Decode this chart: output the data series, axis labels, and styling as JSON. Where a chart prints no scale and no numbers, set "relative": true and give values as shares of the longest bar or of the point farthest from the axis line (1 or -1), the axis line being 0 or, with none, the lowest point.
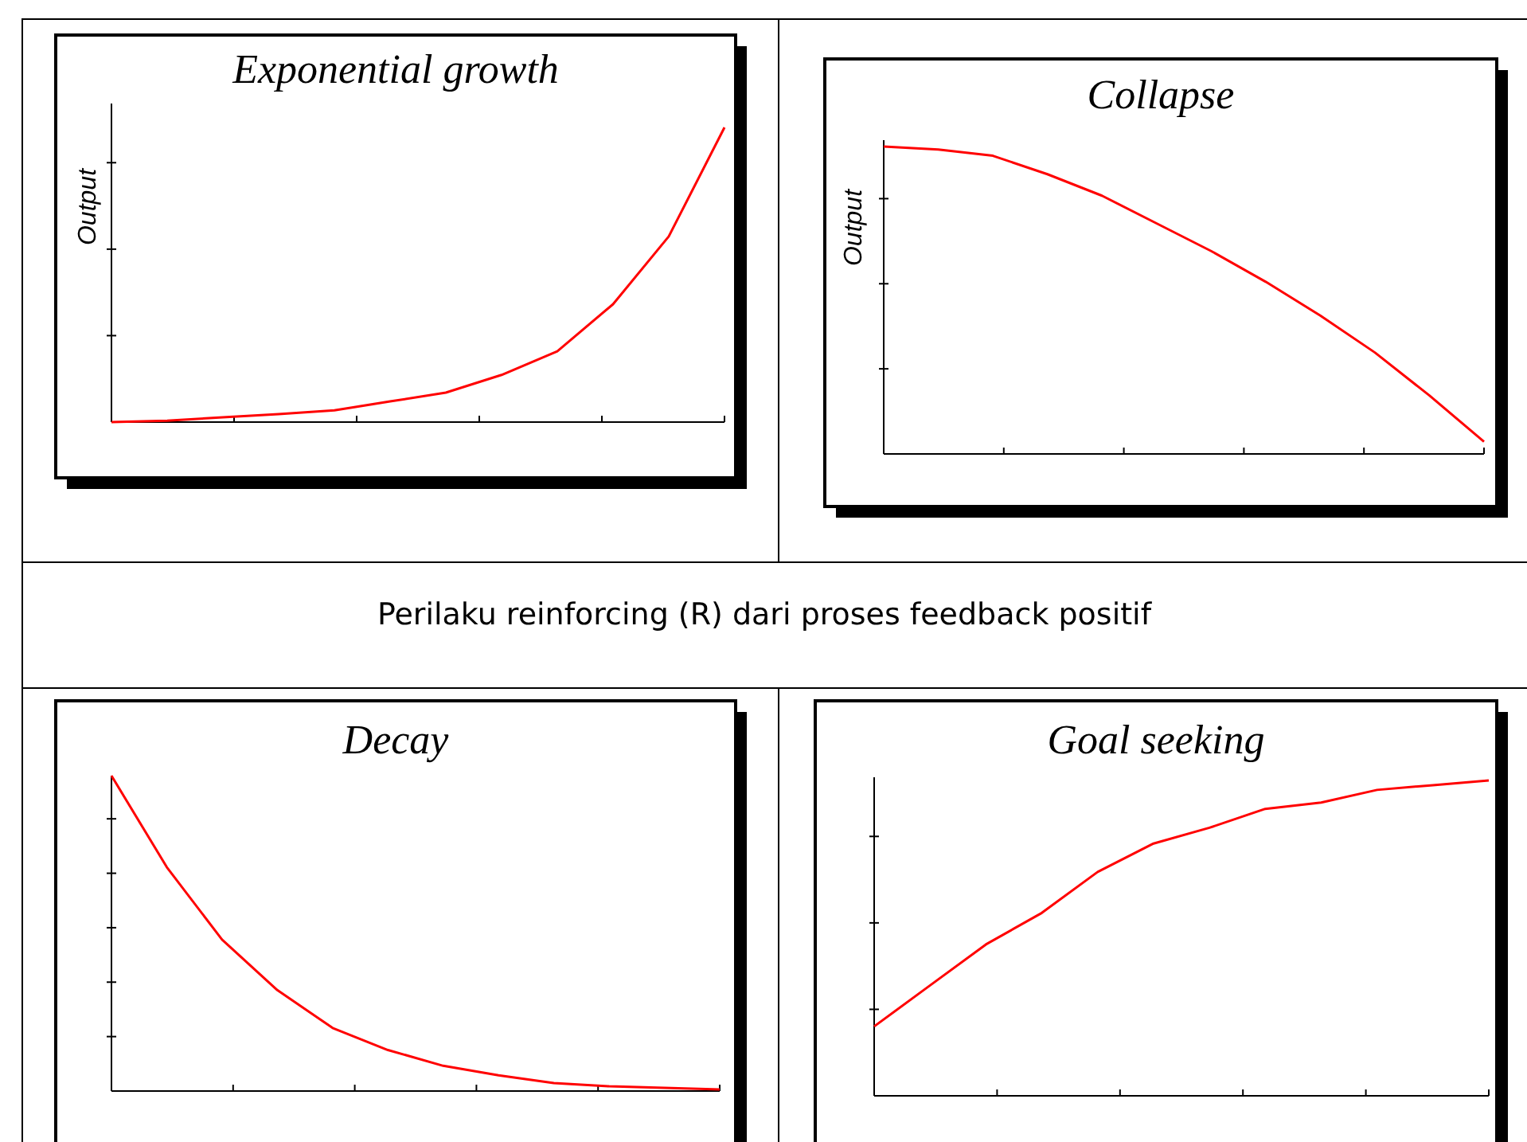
{
  "chart_data": [
    {
      "type": "line",
      "title": "Exponential growth",
      "ylabel": "Output",
      "relative": true,
      "categories": [
        null,
        null,
        null,
        null,
        null,
        null,
        null,
        null,
        null,
        null,
        null,
        null
      ],
      "series": [
        {
          "color": "#ff0000",
          "values": [
            0,
            0.005,
            0.016,
            0.027,
            0.04,
            0.07,
            0.1,
            0.16,
            0.24,
            0.4,
            0.63,
            1
          ]
        }
      ]
    },
    {
      "type": "line",
      "title": "Collapse",
      "ylabel": "Output",
      "relative": true,
      "categories": [
        null,
        null,
        null,
        null,
        null,
        null,
        null,
        null,
        null,
        null,
        null,
        null
      ],
      "series": [
        {
          "color": "#ff0000",
          "values": [
            1,
            0.99,
            0.97,
            0.91,
            0.84,
            0.75,
            0.66,
            0.56,
            0.45,
            0.33,
            0.19,
            0.04
          ]
        }
      ]
    },
    {
      "type": "other",
      "title": "Perilaku reinforcing (R) dari proses feedback positif"
    },
    {
      "type": "line",
      "title": "Decay",
      "relative": true,
      "categories": [
        null,
        null,
        null,
        null,
        null,
        null,
        null,
        null,
        null,
        null,
        null,
        null
      ],
      "series": [
        {
          "color": "#ff0000",
          "values": [
            1,
            0.71,
            0.48,
            0.32,
            0.2,
            0.13,
            0.08,
            0.05,
            0.025,
            0.015,
            0.01,
            0.005
          ]
        }
      ]
    },
    {
      "type": "line",
      "title": "Goal seeking",
      "relative": true,
      "categories": [
        null,
        null,
        null,
        null,
        null,
        null,
        null,
        null,
        null,
        null,
        null,
        null
      ],
      "series": [
        {
          "color": "#ff0000",
          "values": [
            0.22,
            0.35,
            0.48,
            0.58,
            0.71,
            0.8,
            0.85,
            0.91,
            0.93,
            0.97,
            0.985,
            1
          ]
        }
      ]
    }
  ]
}
